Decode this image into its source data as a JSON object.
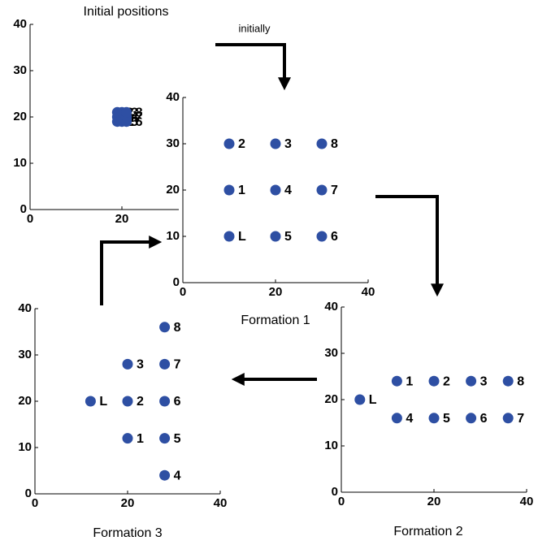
{
  "chart_data": [
    {
      "type": "scatter",
      "title": "Initial positions",
      "xlim": [
        0,
        40
      ],
      "ylim": [
        0,
        40
      ],
      "xticks": [
        0,
        20
      ],
      "yticks": [
        0,
        10,
        20,
        30,
        40
      ],
      "series": [
        {
          "color": "#2e4fa3",
          "x": [
            19,
            19,
            19,
            20,
            20,
            20,
            21,
            21,
            21
          ],
          "y": [
            19,
            20,
            21,
            19,
            20,
            21,
            19,
            20,
            21
          ],
          "labels": [
            "L",
            "1",
            "2",
            "5",
            "4",
            "3",
            "6",
            "7",
            "8"
          ]
        }
      ]
    },
    {
      "type": "scatter",
      "title": "Formation 1",
      "annotation": "initially",
      "xlim": [
        0,
        40
      ],
      "ylim": [
        0,
        40
      ],
      "xticks": [
        0,
        20,
        40
      ],
      "yticks": [
        0,
        10,
        20,
        30,
        40
      ],
      "series": [
        {
          "color": "#2e4fa3",
          "x": [
            10,
            10,
            10,
            20,
            20,
            20,
            30,
            30,
            30
          ],
          "y": [
            10,
            20,
            30,
            30,
            20,
            10,
            10,
            20,
            30
          ],
          "labels": [
            "L",
            "1",
            "2",
            "3",
            "4",
            "5",
            "6",
            "7",
            "8"
          ]
        }
      ]
    },
    {
      "type": "scatter",
      "title": "Formation 2",
      "xlim": [
        0,
        40
      ],
      "ylim": [
        0,
        40
      ],
      "xticks": [
        0,
        20,
        40
      ],
      "yticks": [
        0,
        10,
        20,
        30,
        40
      ],
      "series": [
        {
          "color": "#2e4fa3",
          "x": [
            4,
            12,
            20,
            28,
            12,
            20,
            28,
            36,
            36
          ],
          "y": [
            20,
            24,
            24,
            24,
            16,
            16,
            16,
            16,
            24
          ],
          "labels": [
            "L",
            "1",
            "2",
            "3",
            "4",
            "5",
            "6",
            "7",
            "8"
          ]
        }
      ]
    },
    {
      "type": "scatter",
      "title": "Formation 3",
      "xlim": [
        0,
        40
      ],
      "ylim": [
        0,
        40
      ],
      "xticks": [
        0,
        20,
        40
      ],
      "yticks": [
        0,
        10,
        20,
        30,
        40
      ],
      "series": [
        {
          "color": "#2e4fa3",
          "x": [
            12,
            20,
            20,
            20,
            28,
            28,
            28,
            28,
            28
          ],
          "y": [
            20,
            12,
            20,
            28,
            4,
            12,
            20,
            28,
            36
          ],
          "labels": [
            "L",
            "1",
            "2",
            "3",
            "4",
            "5",
            "6",
            "7",
            "8"
          ]
        }
      ]
    }
  ]
}
